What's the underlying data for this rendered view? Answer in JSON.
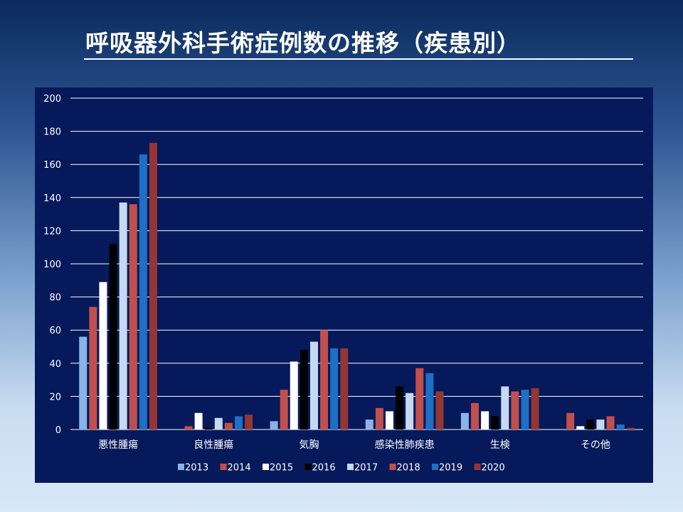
{
  "slide": {
    "title": "呼吸器外科手術症例数の推移（疾患別）"
  },
  "colors": {
    "panel_background": "#06195a",
    "gridline": "#ffffff",
    "text": "#ffffff"
  },
  "chart_data": {
    "type": "bar",
    "title": "",
    "xlabel": "",
    "ylabel": "",
    "ylim": [
      0,
      200
    ],
    "yticks": [
      0,
      20,
      40,
      60,
      80,
      100,
      120,
      140,
      160,
      180,
      200
    ],
    "grid": true,
    "legend_position": "bottom",
    "categories": [
      "悪性腫瘍",
      "良性腫瘍",
      "気胸",
      "感染性肺疾患",
      "生検",
      "その他"
    ],
    "series": [
      {
        "name": "2013",
        "color": "#8ab4e8",
        "values": [
          56,
          0,
          5,
          6,
          10,
          0
        ]
      },
      {
        "name": "2014",
        "color": "#c0504d",
        "values": [
          74,
          2,
          24,
          13,
          16,
          10
        ]
      },
      {
        "name": "2015",
        "color": "#ffffff",
        "values": [
          89,
          10,
          41,
          11,
          11,
          2
        ]
      },
      {
        "name": "2016",
        "color": "#000000",
        "values": [
          112,
          1,
          48,
          26,
          8,
          6
        ]
      },
      {
        "name": "2017",
        "color": "#c5d9f1",
        "values": [
          137,
          7,
          53,
          22,
          26,
          6
        ]
      },
      {
        "name": "2018",
        "color": "#c0504d",
        "values": [
          136,
          4,
          60,
          37,
          23,
          8
        ]
      },
      {
        "name": "2019",
        "color": "#1f6fc5",
        "values": [
          166,
          8,
          49,
          34,
          24,
          3
        ]
      },
      {
        "name": "2020",
        "color": "#943634",
        "values": [
          173,
          9,
          49,
          23,
          25,
          1
        ]
      }
    ]
  }
}
